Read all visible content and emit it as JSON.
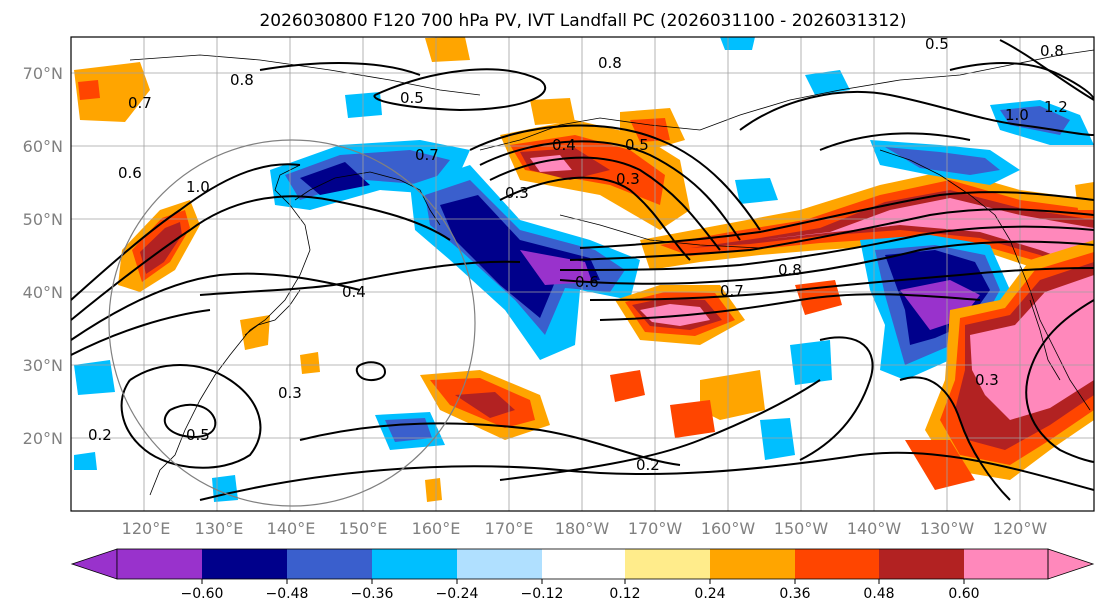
{
  "title": "2026030800 F120 700 hPa PV, IVT Landfall PC (2026031100 - 2026031312)",
  "lat_labels": [
    "70°N",
    "60°N",
    "50°N",
    "40°N",
    "30°N",
    "20°N"
  ],
  "lon_labels": [
    "120°E",
    "130°E",
    "140°E",
    "150°E",
    "160°E",
    "170°E",
    "180°W",
    "170°W",
    "160°W",
    "150°W",
    "140°W",
    "130°W",
    "120°W"
  ],
  "colorbar": {
    "colors": [
      "#9932cc",
      "#00008b",
      "#3a5fcd",
      "#00bfff",
      "#b0e0ff",
      "#ffffff",
      "#ffec8b",
      "#ffa500",
      "#ff4500",
      "#b22222",
      "#ff88bb"
    ],
    "tick_labels": [
      "−0.60",
      "−0.48",
      "−0.36",
      "−0.24",
      "−0.12",
      "0.12",
      "0.24",
      "0.36",
      "0.48",
      "0.60"
    ]
  },
  "contour_labels": [
    "0.8",
    "0.5",
    "0.8",
    "0.7",
    "0.5",
    "0.6",
    "0.8",
    "1.0",
    "0.7",
    "0.4",
    "0.5",
    "0.3",
    "0.3",
    "0.6",
    "0.7",
    "0.8",
    "0.4",
    "0.3",
    "0.5",
    "0.2",
    "0.2",
    "0.3",
    "1.2",
    "1.0"
  ]
}
